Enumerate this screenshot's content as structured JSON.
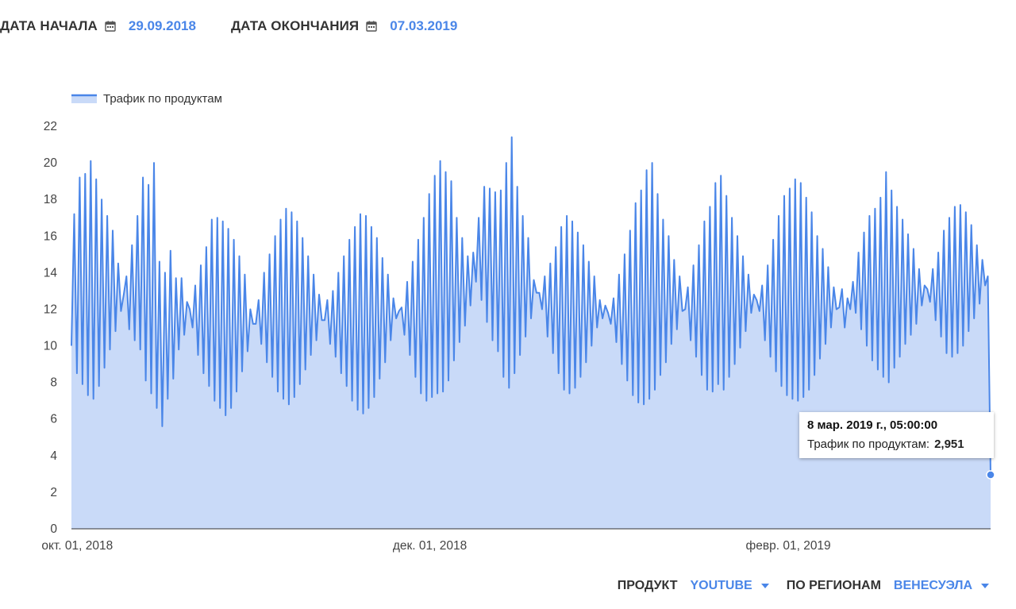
{
  "filters": {
    "start_label": "ДАТА НАЧАЛА",
    "start_value": "29.09.2018",
    "end_label": "ДАТА ОКОНЧАНИЯ",
    "end_value": "07.03.2019",
    "product_label": "ПРОДУКТ",
    "product_value": "YOUTUBE",
    "region_label": "ПО РЕГИОНАМ",
    "region_value": "ВЕНЕСУЭЛА"
  },
  "colors": {
    "accent": "#4a86e8",
    "area_fill": "#c9daf8",
    "line": "#4a86e8"
  },
  "tooltip": {
    "title": "8 мар. 2019 г., 05:00:00",
    "series_label": "Трафик по продуктам:",
    "value": "2,951"
  },
  "chart_data": {
    "type": "area",
    "title": "",
    "xlabel": "",
    "ylabel": "",
    "x_ticks": [
      "окт. 01, 2018",
      "дек. 01, 2018",
      "февр. 01, 2019"
    ],
    "x_tick_dates": [
      "2018-10-01",
      "2018-12-01",
      "2019-02-01"
    ],
    "x_start": "2018-09-30",
    "x_end": "2019-03-08",
    "ylim": [
      0,
      22
    ],
    "y_ticks": [
      0,
      2,
      4,
      6,
      8,
      10,
      12,
      14,
      16,
      18,
      20,
      22
    ],
    "legend_position": "top-left",
    "grid": false,
    "series": [
      {
        "name": "Трафик по продуктам",
        "values": [
          10.0,
          17.2,
          8.5,
          19.2,
          7.9,
          19.4,
          7.3,
          20.1,
          7.1,
          19.1,
          7.8,
          18.0,
          8.8,
          17.1,
          9.8,
          16.3,
          10.8,
          14.5,
          11.9,
          12.8,
          13.8,
          10.9,
          15.5,
          10.3,
          17.1,
          9.8,
          19.2,
          8.1,
          18.8,
          7.4,
          20.0,
          6.6,
          14.6,
          5.6,
          14.0,
          7.1,
          15.2,
          8.2,
          13.7,
          9.8,
          13.7,
          10.6,
          12.4,
          12.0,
          11.0,
          13.3,
          9.5,
          14.4,
          8.5,
          15.4,
          7.8,
          16.9,
          7.0,
          17.0,
          6.6,
          16.8,
          6.2,
          16.4,
          6.6,
          15.8,
          7.5,
          14.9,
          8.6,
          13.9,
          9.7,
          12.0,
          11.2,
          11.2,
          12.5,
          10.1,
          14.0,
          9.1,
          15.0,
          8.3,
          16.0,
          7.5,
          16.9,
          7.1,
          17.5,
          6.8,
          17.3,
          7.2,
          16.8,
          7.9,
          15.9,
          8.7,
          14.9,
          9.5,
          13.9,
          10.3,
          12.8,
          11.4,
          11.4,
          12.5,
          10.1,
          13.0,
          9.4,
          14.0,
          8.5,
          14.9,
          7.8,
          15.8,
          7.0,
          16.5,
          6.5,
          17.2,
          6.3,
          17.1,
          6.6,
          16.5,
          7.2,
          15.9,
          8.2,
          14.8,
          9.1,
          13.9,
          10.3,
          12.6,
          11.5,
          11.9,
          12.1,
          10.6,
          13.5,
          9.5,
          14.6,
          8.3,
          15.8,
          7.4,
          17.0,
          7.0,
          18.3,
          7.2,
          19.3,
          7.4,
          20.1,
          7.5,
          19.5,
          8.1,
          19.0,
          9.2,
          17.0,
          10.2,
          15.9,
          11.1,
          14.9,
          12.2,
          15.1,
          13.5,
          17.0,
          12.5,
          18.7,
          11.3,
          18.6,
          10.3,
          18.4,
          9.7,
          18.5,
          8.3,
          20.0,
          7.7,
          21.4,
          8.5,
          18.7,
          9.5,
          17.1,
          10.5,
          15.9,
          11.5,
          13.6,
          12.9,
          12.9,
          12.0,
          13.8,
          10.5,
          14.5,
          9.6,
          15.4,
          8.5,
          16.5,
          7.6,
          17.1,
          7.4,
          16.8,
          7.7,
          16.2,
          8.3,
          15.5,
          9.1,
          14.6,
          10.0,
          13.8,
          11.0,
          12.5,
          11.5,
          12.2,
          11.8,
          11.2,
          12.6,
          10.2,
          13.9,
          9.0,
          15.0,
          8.1,
          16.3,
          7.3,
          17.8,
          6.9,
          18.5,
          6.8,
          19.6,
          7.1,
          20.0,
          7.6,
          18.3,
          8.4,
          16.9,
          9.1,
          16.0,
          10.1,
          14.7,
          10.9,
          13.8,
          11.9,
          12.0,
          13.2,
          10.3,
          14.4,
          9.4,
          15.5,
          8.4,
          16.8,
          7.6,
          17.6,
          7.5,
          18.9,
          7.9,
          19.3,
          7.6,
          18.2,
          8.3,
          17.0,
          9.0,
          16.0,
          9.9,
          14.9,
          10.8,
          13.9,
          11.8,
          12.8,
          12.5,
          11.9,
          13.3,
          10.3,
          14.4,
          9.4,
          15.8,
          8.6,
          17.1,
          7.8,
          18.2,
          7.3,
          18.6,
          7.1,
          19.1,
          7.0,
          18.9,
          7.2,
          18.1,
          7.6,
          17.3,
          8.4,
          16.0,
          9.3,
          15.3,
          10.1,
          14.3,
          11.0,
          13.2,
          12.0,
          12.1,
          13.1,
          11.0,
          12.6,
          12.0,
          13.5,
          11.8,
          15.1,
          10.9,
          16.2,
          10.0,
          17.1,
          9.2,
          17.5,
          8.7,
          18.1,
          8.3,
          19.5,
          8.0,
          18.5,
          8.8,
          17.6,
          9.4,
          16.9,
          10.1,
          16.1,
          10.6,
          15.3,
          11.2,
          14.2,
          12.2,
          13.3,
          13.1,
          12.4,
          14.2,
          11.4,
          15.1,
          10.5,
          16.3,
          9.6,
          17.0,
          9.4,
          17.6,
          9.6,
          17.7,
          10.0,
          17.3,
          10.8,
          16.6,
          11.5,
          15.5,
          12.3,
          14.7,
          13.3,
          13.8,
          2.951
        ]
      }
    ]
  }
}
